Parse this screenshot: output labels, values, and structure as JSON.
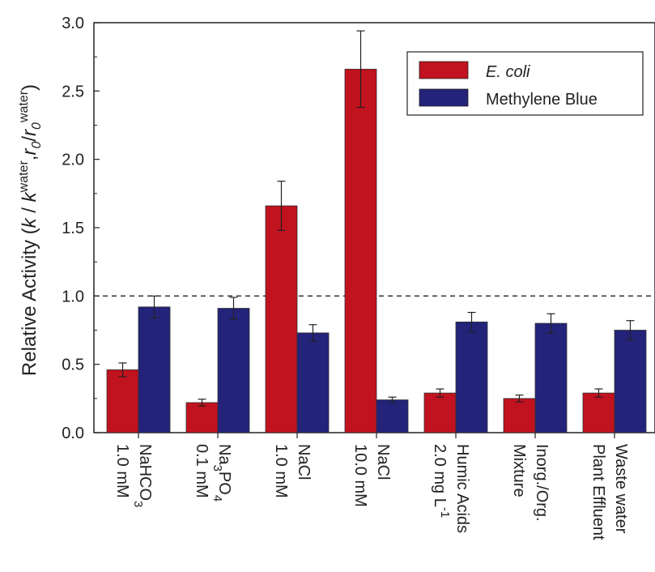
{
  "chart_data": {
    "type": "bar",
    "ylabel": "Relative Activity (k / k^water, r0/r0^water)",
    "ylim": [
      0,
      3.0
    ],
    "yticks": [
      "0.0",
      "0.5",
      "1.0",
      "1.5",
      "2.0",
      "2.5",
      "3.0"
    ],
    "reference_line": 1.0,
    "categories": [
      {
        "line1": "NaHCO3",
        "line2": "1.0 mM"
      },
      {
        "line1": "Na3PO4",
        "line2": "0.1 mM"
      },
      {
        "line1": "NaCl",
        "line2": "1.0 mM"
      },
      {
        "line1": "NaCl",
        "line2": "10.0 mM"
      },
      {
        "line1": "Humic Acids",
        "line2": "2.0 mg L-1"
      },
      {
        "line1": "Inorg./Org.",
        "line2": "Mixture"
      },
      {
        "line1": "Waste water",
        "line2": "Plant Effluent"
      }
    ],
    "series": [
      {
        "name": "E. coli",
        "color": "#c1121f",
        "values": [
          0.46,
          0.22,
          1.66,
          2.66,
          0.29,
          0.25,
          0.29
        ],
        "errors": [
          0.05,
          0.025,
          0.18,
          0.28,
          0.03,
          0.025,
          0.03
        ]
      },
      {
        "name": "Methylene Blue",
        "color": "#23237a",
        "values": [
          0.92,
          0.91,
          0.73,
          0.24,
          0.81,
          0.8,
          0.75
        ],
        "errors": [
          0.08,
          0.08,
          0.06,
          0.02,
          0.07,
          0.07,
          0.07
        ]
      }
    ],
    "legend_position": "top-right"
  }
}
